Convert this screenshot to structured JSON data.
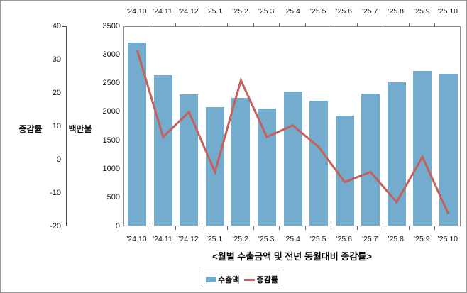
{
  "chart_data": {
    "type": "bar",
    "title": "<월별 수출금액 및 전년 동월대비 증감률>",
    "categories": [
      "’24.10",
      "’24.11",
      "’24.12",
      "’25.1",
      "’25.2",
      "’25.3",
      "’25.4",
      "’25.5",
      "’25.6",
      "’25.7",
      "’25.8",
      "’25.9",
      "’25.10"
    ],
    "series": [
      {
        "name": "수출액",
        "type": "bar",
        "axis": "amount",
        "color": "#73ACCD",
        "values": [
          3200,
          2630,
          2300,
          2070,
          2240,
          2050,
          2350,
          2190,
          1930,
          2310,
          2510,
          2710,
          2660
        ]
      },
      {
        "name": "증감률",
        "type": "line",
        "axis": "percent",
        "color": "#C5605B",
        "values": [
          33,
          7,
          14.5,
          -3.5,
          24,
          7,
          10.5,
          4,
          -6.5,
          -3.5,
          -12.5,
          1,
          -16
        ]
      }
    ],
    "axes": {
      "percent": {
        "title": "증감률",
        "min": -20,
        "max": 40,
        "ticks": [
          40,
          30,
          20,
          10,
          0,
          -10,
          -20
        ]
      },
      "amount": {
        "title": "백만불",
        "min": 0,
        "max": 3500,
        "ticks": [
          3500,
          3000,
          2500,
          2000,
          1500,
          1000,
          500,
          0
        ]
      }
    },
    "legend_position": "bottom",
    "grid": false,
    "category_labels_shown": [
      "top",
      "bottom"
    ]
  }
}
